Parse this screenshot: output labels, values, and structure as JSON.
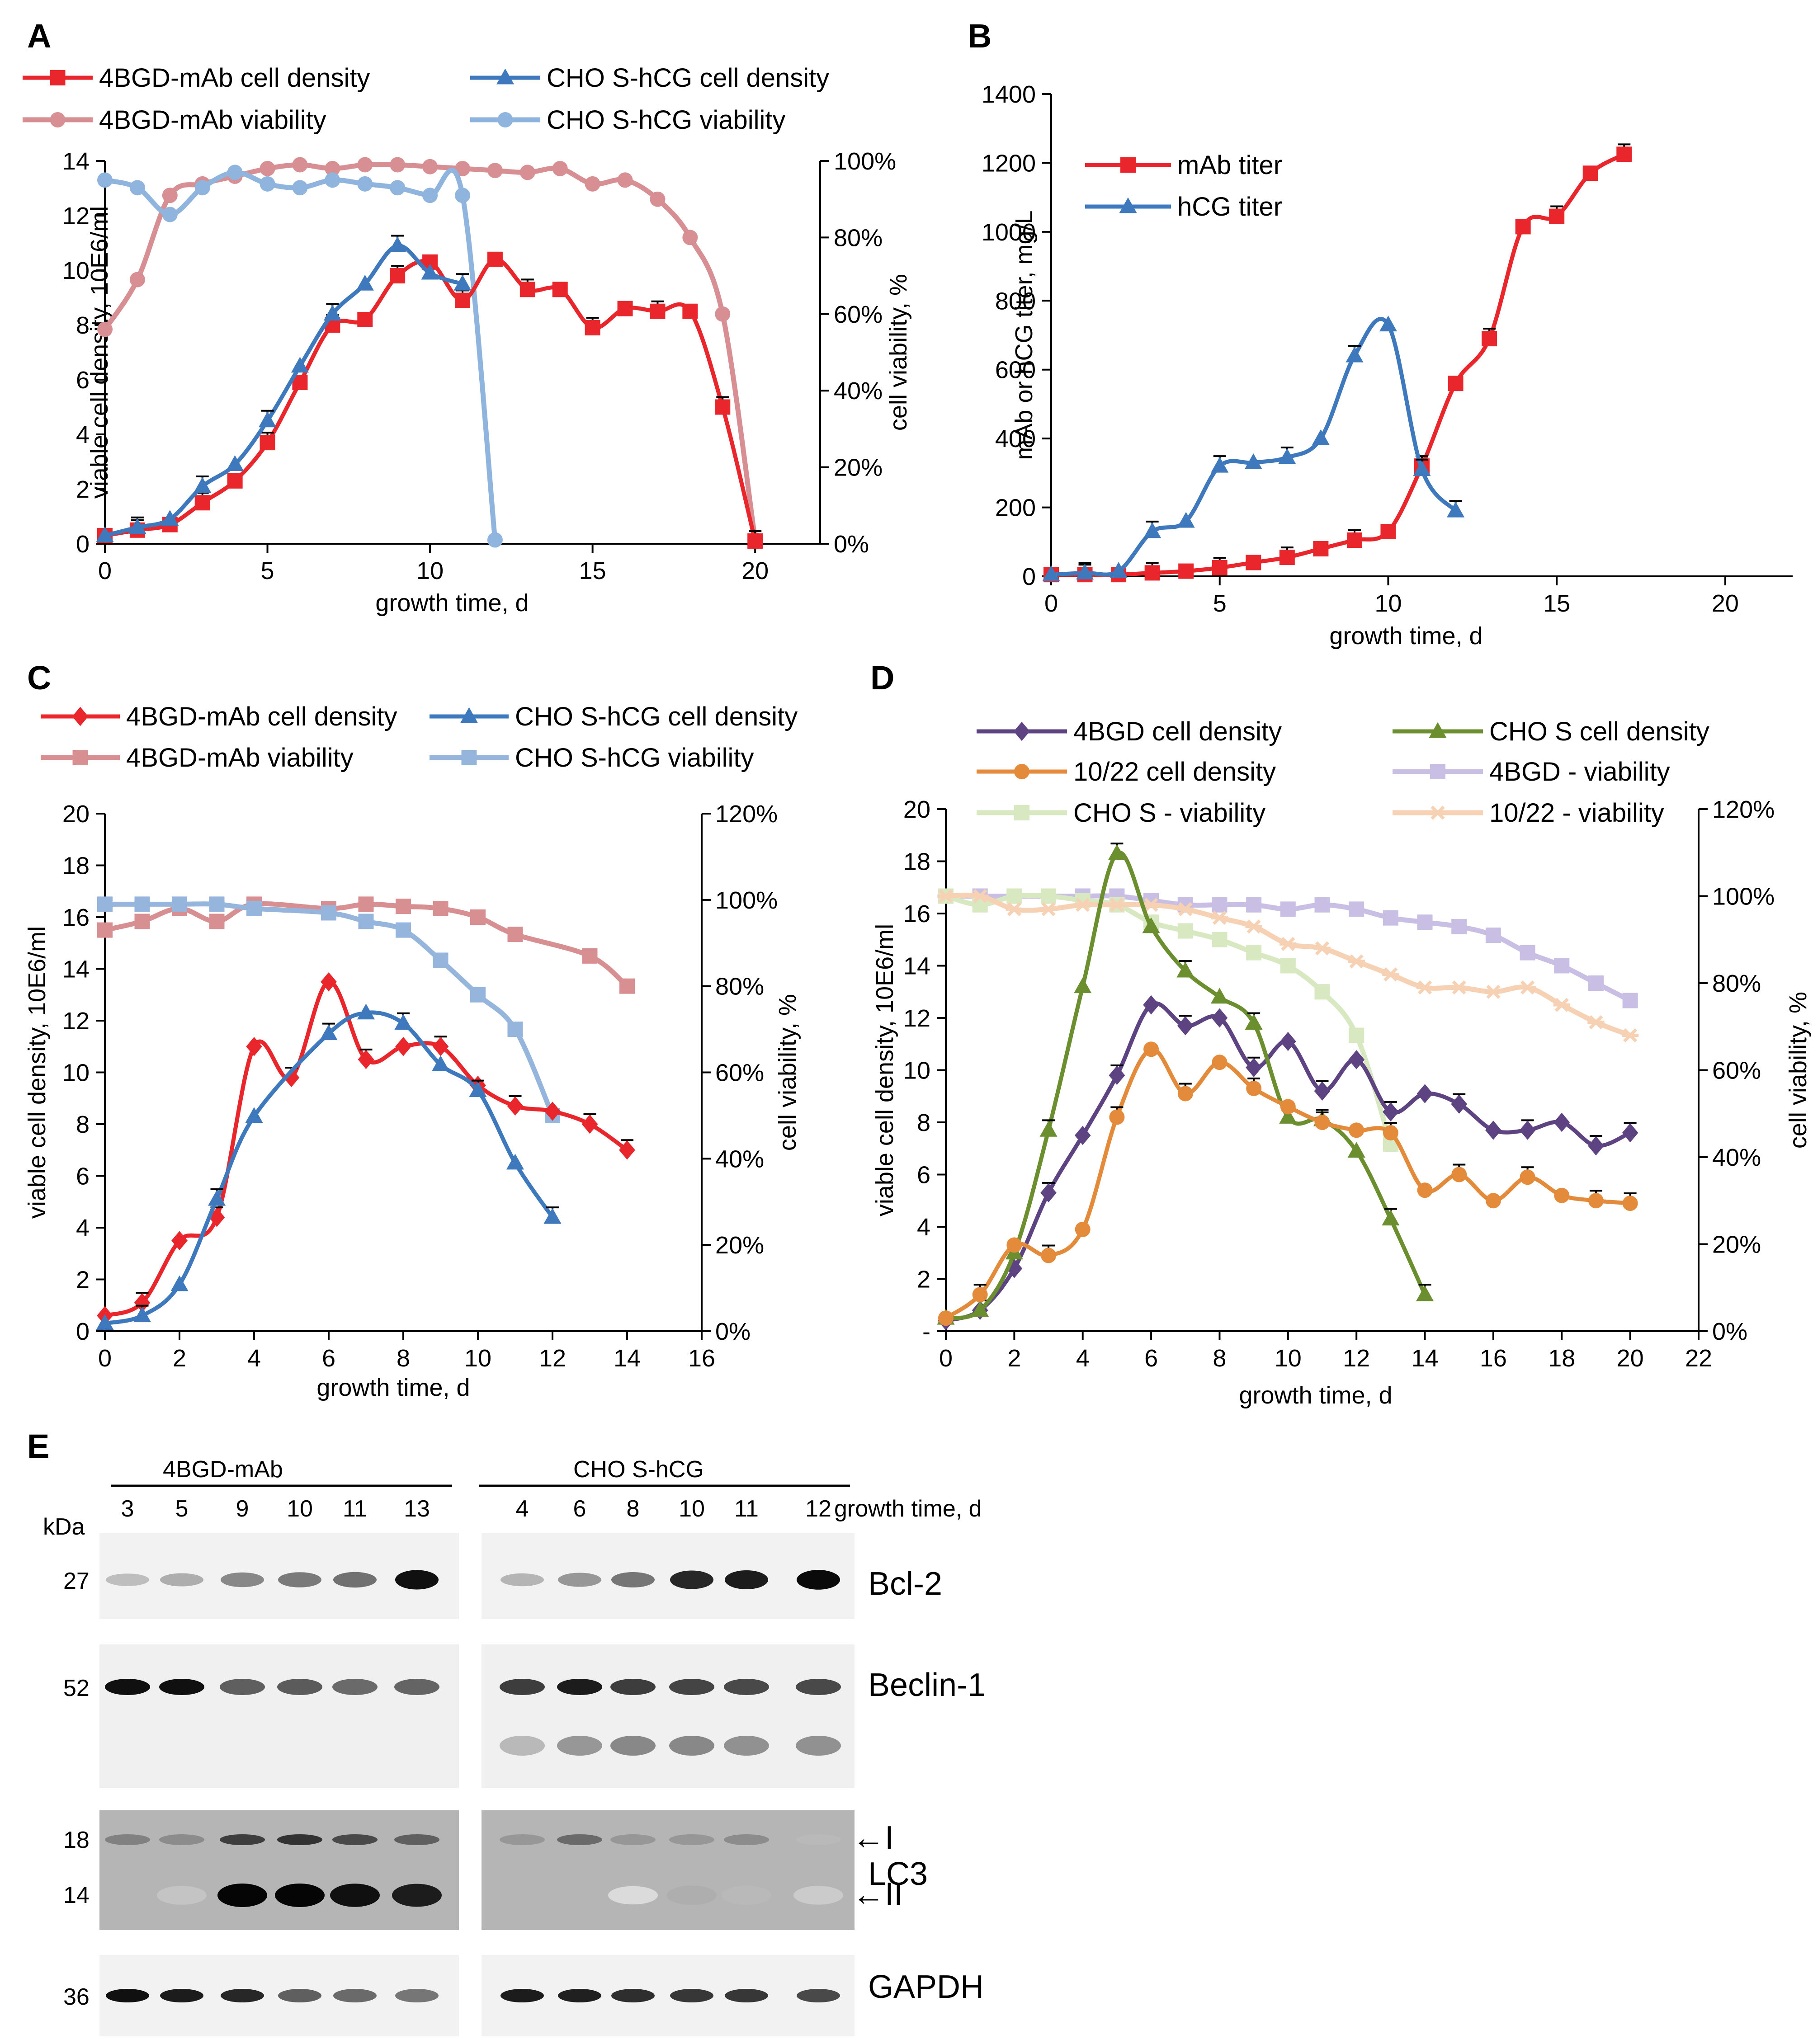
{
  "chart_data": [
    {
      "panel": "A",
      "type": "line",
      "xlabel": "growth time, d",
      "ylabel": "viable cell density, 10E6/ml",
      "y2label": "cell viability, %",
      "xlim": [
        0,
        22
      ],
      "xticks": [
        0,
        5,
        10,
        15,
        20
      ],
      "ylim": [
        0,
        14
      ],
      "yticks": [
        0,
        2,
        4,
        6,
        8,
        10,
        12,
        14
      ],
      "y2lim": [
        0,
        100
      ],
      "y2ticks": [
        "0%",
        "20%",
        "40%",
        "60%",
        "80%",
        "100%"
      ],
      "series": [
        {
          "name": "4BGD-mAb cell density",
          "axis": "left",
          "color": "#e8262b",
          "marker": "square",
          "x": [
            0,
            1,
            2,
            3,
            4,
            5,
            6,
            7,
            8,
            9,
            10,
            11,
            12,
            13,
            14,
            15,
            16,
            17,
            18,
            19,
            20
          ],
          "y": [
            0.3,
            0.5,
            0.7,
            1.5,
            2.3,
            3.7,
            5.9,
            8.0,
            8.2,
            9.8,
            10.3,
            8.9,
            10.4,
            9.3,
            9.3,
            7.9,
            8.6,
            8.5,
            8.5,
            5.0,
            0.1
          ]
        },
        {
          "name": "CHO S-hCG cell density",
          "axis": "left",
          "color": "#3e79bd",
          "marker": "triangle",
          "x": [
            0,
            1,
            2,
            3,
            4,
            5,
            6,
            7,
            8,
            9,
            10,
            11
          ],
          "y": [
            0.3,
            0.6,
            0.9,
            2.1,
            2.9,
            4.5,
            6.5,
            8.4,
            9.5,
            10.9,
            9.9,
            9.5
          ]
        },
        {
          "name": "4BGD-mAb viability",
          "axis": "right",
          "color": "#d78f93",
          "marker": "circle",
          "x": [
            0,
            1,
            2,
            3,
            4,
            5,
            6,
            7,
            8,
            9,
            10,
            11,
            12,
            13,
            14,
            15,
            16,
            17,
            18,
            19,
            20
          ],
          "y": [
            56,
            69,
            91,
            94,
            96,
            98,
            99,
            98,
            99,
            99,
            98.5,
            98,
            97.5,
            97,
            98,
            94,
            95,
            90,
            80,
            60,
            1
          ]
        },
        {
          "name": "CHO S-hCG viability",
          "axis": "right",
          "color": "#8fb4de",
          "marker": "circle",
          "x": [
            0,
            1,
            2,
            3,
            4,
            5,
            6,
            7,
            8,
            9,
            10,
            11,
            12
          ],
          "y": [
            95,
            93,
            86,
            93,
            97,
            94,
            93,
            95,
            94,
            93,
            91,
            91,
            1
          ]
        }
      ],
      "legend": [
        "4BGD-mAb cell density",
        "CHO S-hCG cell density",
        "4BGD-mAb viability",
        "CHO S-hCG viability"
      ]
    },
    {
      "panel": "B",
      "type": "line",
      "xlabel": "growth time, d",
      "ylabel": "mAb or hCG titer, mg/L",
      "xlim": [
        0,
        22
      ],
      "xticks": [
        0,
        5,
        10,
        15,
        20
      ],
      "ylim": [
        0,
        1400
      ],
      "yticks": [
        0,
        200,
        400,
        600,
        800,
        1000,
        1200,
        1400
      ],
      "series": [
        {
          "name": "mAb titer",
          "color": "#e8262b",
          "marker": "square",
          "x": [
            0,
            1,
            2,
            3,
            4,
            5,
            6,
            7,
            8,
            9,
            10,
            11,
            12,
            13,
            14,
            15,
            16,
            17
          ],
          "y": [
            5,
            5,
            5,
            10,
            15,
            25,
            40,
            55,
            80,
            105,
            130,
            320,
            560,
            690,
            1015,
            1045,
            1170,
            1225
          ]
        },
        {
          "name": "hCG titer",
          "color": "#3e79bd",
          "marker": "triangle",
          "x": [
            0,
            1,
            2,
            3,
            4,
            5,
            6,
            7,
            8,
            9,
            10,
            11,
            12
          ],
          "y": [
            5,
            10,
            15,
            130,
            160,
            320,
            330,
            345,
            400,
            640,
            730,
            310,
            190
          ]
        }
      ],
      "legend": [
        "mAb titer",
        "hCG titer"
      ]
    },
    {
      "panel": "C",
      "type": "line",
      "xlabel": "growth time, d",
      "ylabel": "viable cell density, 10E6/ml",
      "y2label": "cell viability, %",
      "xlim": [
        0,
        16
      ],
      "xticks": [
        0,
        2,
        4,
        6,
        8,
        10,
        12,
        14,
        16
      ],
      "ylim": [
        0,
        20
      ],
      "yticks": [
        0,
        2,
        4,
        6,
        8,
        10,
        12,
        14,
        16,
        18,
        20
      ],
      "y2lim": [
        0,
        120
      ],
      "y2ticks": [
        "0%",
        "20%",
        "40%",
        "60%",
        "80%",
        "100%",
        "120%"
      ],
      "series": [
        {
          "name": "4BGD-mAb cell density",
          "axis": "left",
          "color": "#e8262b",
          "marker": "diamond",
          "x": [
            0,
            1,
            2,
            3,
            4,
            5,
            6,
            7,
            8,
            9,
            10,
            11,
            12,
            13,
            14
          ],
          "y": [
            0.6,
            1.1,
            3.5,
            4.4,
            11.0,
            9.8,
            13.5,
            10.5,
            11.0,
            11.0,
            9.5,
            8.7,
            8.5,
            8.0,
            7.0
          ]
        },
        {
          "name": "CHO S-hCG cell density",
          "axis": "left",
          "color": "#3e79bd",
          "marker": "triangle",
          "x": [
            0,
            1,
            2,
            3,
            4,
            6,
            7,
            8,
            9,
            10,
            11,
            12
          ],
          "y": [
            0.3,
            0.6,
            1.8,
            5.1,
            8.3,
            11.5,
            12.3,
            11.9,
            10.3,
            9.3,
            6.5,
            4.4
          ]
        },
        {
          "name": "4BGD-mAb viability",
          "axis": "right",
          "color": "#d88f92",
          "marker": "square",
          "x": [
            0,
            1,
            2,
            3,
            4,
            6,
            7,
            8,
            9,
            10,
            11,
            13,
            14
          ],
          "y": [
            93,
            95,
            98,
            95,
            99,
            98,
            99,
            98.5,
            98,
            96,
            92,
            87,
            80
          ]
        },
        {
          "name": "CHO S-hCG viability",
          "axis": "right",
          "color": "#95b5dc",
          "marker": "square",
          "x": [
            0,
            1,
            2,
            3,
            4,
            6,
            7,
            8,
            9,
            10,
            11,
            12
          ],
          "y": [
            99,
            99,
            99,
            99,
            98,
            97,
            95,
            93,
            86,
            78,
            70,
            50
          ]
        }
      ],
      "legend": [
        "4BGD-mAb cell density",
        "CHO S-hCG cell density",
        "4BGD-mAb viability",
        "CHO S-hCG viability"
      ]
    },
    {
      "panel": "D",
      "type": "line",
      "xlabel": "growth time, d",
      "ylabel": "viable cell density, 10E6/ml",
      "y2label": "cell viability, %",
      "xlim": [
        0,
        22
      ],
      "xticks": [
        0,
        2,
        4,
        6,
        8,
        10,
        12,
        14,
        16,
        18,
        20,
        22
      ],
      "ylim": [
        0,
        20
      ],
      "yticks": [
        "-",
        "2",
        "4",
        "6",
        "8",
        "10",
        "12",
        "14",
        "16",
        "18",
        "20"
      ],
      "y2lim": [
        0,
        120
      ],
      "y2ticks": [
        "0%",
        "20%",
        "40%",
        "60%",
        "80%",
        "100%",
        "120%"
      ],
      "series": [
        {
          "name": "4BGD cell density",
          "axis": "left",
          "color": "#5e4383",
          "marker": "diamond",
          "x": [
            0,
            1,
            2,
            3,
            4,
            5,
            6,
            7,
            8,
            9,
            10,
            11,
            12,
            13,
            14,
            15,
            16,
            17,
            18,
            19,
            20
          ],
          "y": [
            0.4,
            0.8,
            2.4,
            5.3,
            7.5,
            9.8,
            12.5,
            11.7,
            12.0,
            10.1,
            11.1,
            9.2,
            10.4,
            8.4,
            9.1,
            8.7,
            7.7,
            7.7,
            8.0,
            7.1,
            7.6
          ]
        },
        {
          "name": "CHO S cell density",
          "axis": "left",
          "color": "#6b8e2f",
          "marker": "triangle",
          "x": [
            0,
            1,
            2,
            3,
            4,
            5,
            6,
            7,
            8,
            9,
            10,
            11,
            12,
            13,
            14
          ],
          "y": [
            0.5,
            0.8,
            3.0,
            7.7,
            13.2,
            18.3,
            15.5,
            13.8,
            12.8,
            11.8,
            8.2,
            8.1,
            6.9,
            4.3,
            1.4
          ]
        },
        {
          "name": "10/22 cell density",
          "axis": "left",
          "color": "#e48a3b",
          "marker": "circle",
          "x": [
            0,
            1,
            2,
            3,
            4,
            5,
            6,
            7,
            8,
            9,
            10,
            11,
            12,
            13,
            14,
            15,
            16,
            17,
            18,
            19,
            20
          ],
          "y": [
            0.5,
            1.4,
            3.3,
            2.9,
            3.9,
            8.2,
            10.8,
            9.1,
            10.3,
            9.3,
            8.6,
            8.0,
            7.7,
            7.6,
            5.4,
            6.0,
            5.0,
            5.9,
            5.2,
            5.0,
            4.9
          ]
        },
        {
          "name": "4BGD - viability",
          "axis": "right",
          "color": "#c9bee4",
          "marker": "square",
          "x": [
            0,
            1,
            2,
            3,
            4,
            5,
            6,
            7,
            8,
            9,
            10,
            11,
            12,
            13,
            14,
            15,
            16,
            17,
            18,
            19,
            20
          ],
          "y": [
            100,
            100,
            100,
            100,
            100,
            100,
            99,
            98,
            98,
            98,
            97,
            98,
            97,
            95,
            94,
            93,
            91,
            87,
            84,
            80,
            76
          ]
        },
        {
          "name": "CHO S - viability",
          "axis": "right",
          "color": "#d8e9c1",
          "marker": "square",
          "x": [
            0,
            1,
            2,
            3,
            4,
            5,
            6,
            7,
            8,
            9,
            10,
            11,
            12,
            13
          ],
          "y": [
            100,
            98,
            100,
            100,
            99,
            98,
            94,
            92,
            90,
            87,
            84,
            78,
            68,
            43
          ]
        },
        {
          "name": "10/22 - viability",
          "axis": "right",
          "color": "#f7d1b4",
          "marker": "star",
          "x": [
            0,
            1,
            2,
            3,
            4,
            5,
            6,
            7,
            8,
            9,
            10,
            11,
            12,
            13,
            14,
            15,
            16,
            17,
            18,
            19,
            20
          ],
          "y": [
            100,
            100,
            97,
            97,
            98,
            98,
            98,
            97,
            95,
            93,
            89,
            88,
            85,
            82,
            79,
            79,
            78,
            79,
            75,
            71,
            68
          ]
        }
      ],
      "legend": [
        "4BGD cell density",
        "CHO S cell density",
        "10/22 cell density",
        "4BGD - viability",
        "CHO S - viability",
        "10/22 - viability"
      ]
    }
  ],
  "panel_letters": {
    "a": "A",
    "b": "B",
    "c": "C",
    "d": "D",
    "e": "E"
  },
  "blot": {
    "group1": "4BGD-mAb",
    "group2": "CHO S-hCG",
    "lanes1": [
      "3",
      "5",
      "9",
      "10",
      "11",
      "13"
    ],
    "lanes2": [
      "4",
      "6",
      "8",
      "10",
      "11",
      "12"
    ],
    "growth_label": "growth time, d",
    "kda_label": "kDa",
    "kda": {
      "bcl2": "27",
      "beclin": "52",
      "lc3_i": "18",
      "lc3_ii": "14",
      "gapdh": "36"
    },
    "proteins": {
      "bcl2": "Bcl-2",
      "beclin": "Beclin-1",
      "lc3": "LC3",
      "gapdh": "GAPDH"
    },
    "lc3_forms": {
      "i": "←I",
      "ii": "←II"
    },
    "band_intensity": {
      "bcl2": [
        0.18,
        0.25,
        0.42,
        0.48,
        0.52,
        0.95,
        0.22,
        0.35,
        0.5,
        0.85,
        0.9,
        0.98
      ],
      "beclin": [
        0.95,
        0.95,
        0.6,
        0.62,
        0.55,
        0.58,
        0.75,
        0.9,
        0.75,
        0.72,
        0.7,
        0.7
      ],
      "beclin_lower": [
        0,
        0,
        0,
        0,
        0,
        0,
        0.2,
        0.35,
        0.42,
        0.42,
        0.38,
        0.38
      ],
      "lc3_i": [
        0.45,
        0.4,
        0.75,
        0.8,
        0.7,
        0.6,
        0.35,
        0.55,
        0.35,
        0.35,
        0.4,
        0.2
      ],
      "lc3_ii": [
        0,
        0.15,
        1,
        1,
        0.95,
        0.9,
        0,
        0,
        0.05,
        0.25,
        0.2,
        0.12
      ],
      "gapdh": [
        0.95,
        0.9,
        0.85,
        0.6,
        0.55,
        0.5,
        0.9,
        0.88,
        0.82,
        0.78,
        0.78,
        0.7
      ]
    }
  }
}
